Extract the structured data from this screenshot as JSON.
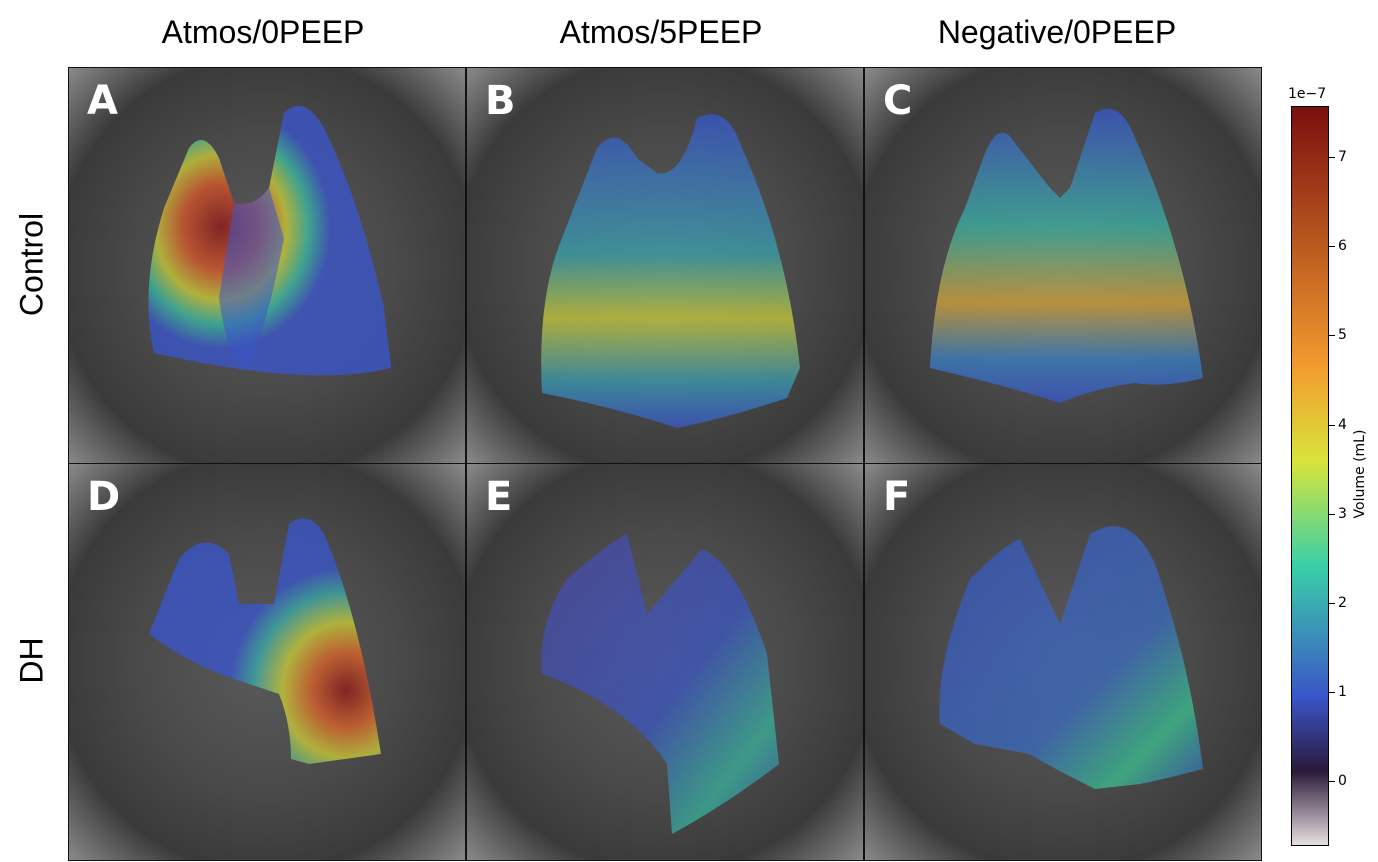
{
  "columns": [
    "Atmos/0PEEP",
    "Atmos/5PEEP",
    "Negative/0PEEP"
  ],
  "rows": [
    "Control",
    "DH"
  ],
  "panels": [
    {
      "letter": "A",
      "row": "Control",
      "column": "Atmos/0PEEP"
    },
    {
      "letter": "B",
      "row": "Control",
      "column": "Atmos/5PEEP"
    },
    {
      "letter": "C",
      "row": "Control",
      "column": "Negative/0PEEP"
    },
    {
      "letter": "D",
      "row": "DH",
      "column": "Atmos/0PEEP"
    },
    {
      "letter": "E",
      "row": "DH",
      "column": "Atmos/5PEEP"
    },
    {
      "letter": "F",
      "row": "DH",
      "column": "Negative/0PEEP"
    }
  ],
  "colorbar": {
    "label": "Volume (mL)",
    "exponent": "1e−7",
    "ticks": [
      "7",
      "6",
      "5",
      "4",
      "3",
      "2",
      "1",
      "0"
    ],
    "colors": {
      "high": "#7a0f0f",
      "mid_high": "#f39a2e",
      "mid": "#d8e43a",
      "mid_low": "#3ad0a8",
      "low": "#3a55c8",
      "zero": "#2a1a3a",
      "negative": "#e8e0e0"
    }
  }
}
